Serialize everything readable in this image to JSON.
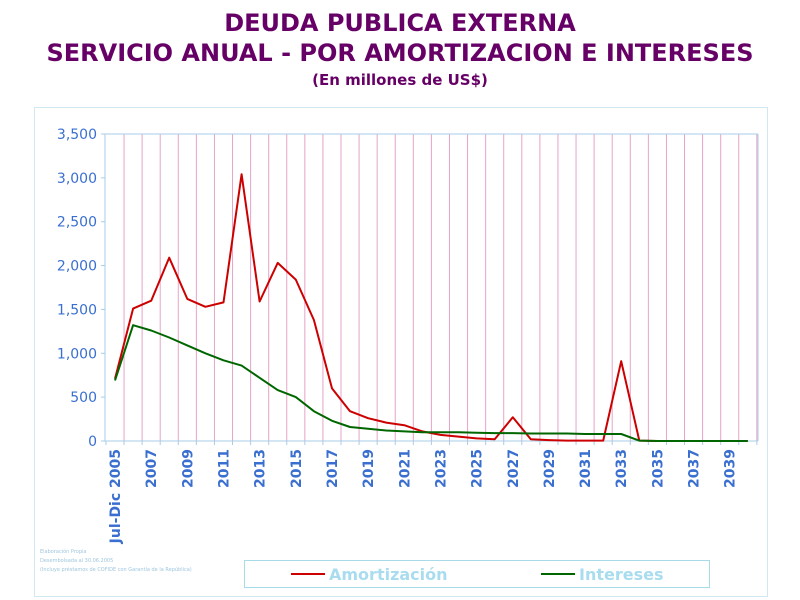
{
  "title": {
    "line1": "DEUDA PUBLICA EXTERNA",
    "line2": "SERVICIO ANUAL - POR AMORTIZACION E INTERESES",
    "line3": "(En millones de US$)"
  },
  "footnote": {
    "line1": "Elaboración Propia",
    "line2": "Desembolsada al 30.06.2005",
    "line3": "(Incluye préstamos de COFIDE con Garantía de la República)"
  },
  "colors": {
    "title": "#660066",
    "amortizacion": "#cc0000",
    "intereses": "#006600",
    "axis_text": "#3a6fd0",
    "vertical_grid": "#e6a4c8",
    "axis_line": "#a8cde8"
  },
  "chart_data": {
    "type": "line",
    "x": [
      "Jul-Dic 2005",
      "2006",
      "2007",
      "2008",
      "2009",
      "2010",
      "2011",
      "2012",
      "2013",
      "2014",
      "2015",
      "2016",
      "2017",
      "2018",
      "2019",
      "2020",
      "2021",
      "2022",
      "2023",
      "2024",
      "2025",
      "2026",
      "2027",
      "2028",
      "2029",
      "2030",
      "2031",
      "2032",
      "2033",
      "2034",
      "2035",
      "2036",
      "2037",
      "2038",
      "2039",
      "2040"
    ],
    "x_tick_labels": [
      "Jul-Dic 2005",
      "2007",
      "2009",
      "2011",
      "2013",
      "2015",
      "2017",
      "2019",
      "2021",
      "2023",
      "2025",
      "2027",
      "2029",
      "2031",
      "2033",
      "2035",
      "2037",
      "2039"
    ],
    "series": [
      {
        "name": "Amortización",
        "color": "#cc0000",
        "values": [
          710,
          1510,
          1600,
          2090,
          1620,
          1530,
          1580,
          3040,
          1590,
          2030,
          1840,
          1380,
          600,
          340,
          260,
          210,
          180,
          110,
          70,
          50,
          30,
          20,
          270,
          20,
          10,
          5,
          5,
          5,
          910,
          5,
          0,
          0,
          0,
          0,
          0,
          0
        ]
      },
      {
        "name": "Intereses",
        "color": "#006600",
        "values": [
          690,
          1320,
          1260,
          1180,
          1090,
          1000,
          920,
          860,
          720,
          580,
          500,
          340,
          230,
          160,
          140,
          120,
          110,
          100,
          100,
          100,
          95,
          90,
          90,
          85,
          85,
          85,
          80,
          80,
          80,
          5,
          0,
          0,
          0,
          0,
          0,
          0
        ]
      }
    ],
    "ylim": [
      0,
      3500
    ],
    "y_ticks": [
      "0",
      "500",
      "1,000",
      "1,500",
      "2,000",
      "2,500",
      "3,000",
      "3,500"
    ],
    "grid": "vertical",
    "legend_position": "bottom"
  }
}
